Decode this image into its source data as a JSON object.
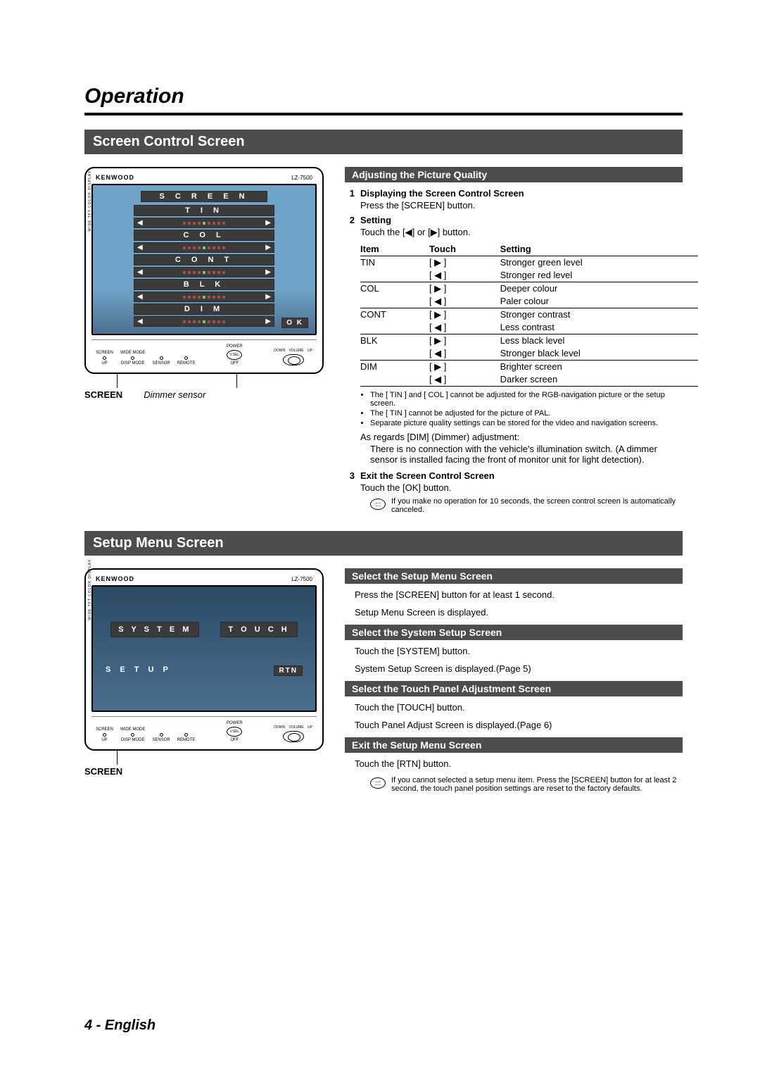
{
  "page_title": "Operation",
  "footer": "4 - English",
  "device": {
    "brand": "KENWOOD",
    "model": "LZ-7500",
    "sidetext": "WIDE TFT COLOR DISPLAY",
    "ok": "O K",
    "hw": {
      "screen": "SCREEN",
      "wide": "WIDE MODE",
      "up": "UP",
      "disp": "DISP MODE",
      "sensor": "SENSOR",
      "remote": "REMOTE",
      "power": "POWER",
      "off": "OFF",
      "vsel": "V.SEL",
      "down": "DOWN",
      "volume": "VOLUME",
      "vol_up": "UP"
    }
  },
  "section1": {
    "title": "Screen Control Screen",
    "menu_title": "S C R E E N",
    "menu_items": [
      "T I N",
      "C O L",
      "C O N T",
      "B L K",
      "D I M"
    ],
    "caption_bold": "SCREEN",
    "caption_italic": "Dimmer sensor",
    "sub_bar": "Adjusting the Picture Quality",
    "steps": {
      "s1_title": "Displaying the Screen Control Screen",
      "s1_body": "Press the [SCREEN] button.",
      "s2_title": "Setting",
      "s2_body": "Touch the [◀] or [▶] button.",
      "s3_title": "Exit the Screen Control Screen",
      "s3_body": "Touch the [OK] button."
    },
    "table": {
      "headers": [
        "Item",
        "Touch",
        "Setting"
      ],
      "rows": [
        {
          "item": "TIN",
          "touch": "[ ▶ ]",
          "setting": "Stronger green level",
          "end": false
        },
        {
          "item": "",
          "touch": "[ ◀ ]",
          "setting": "Stronger red level",
          "end": true
        },
        {
          "item": "COL",
          "touch": "[ ▶ ]",
          "setting": "Deeper colour",
          "end": false
        },
        {
          "item": "",
          "touch": "[ ◀ ]",
          "setting": "Paler colour",
          "end": true
        },
        {
          "item": "CONT",
          "touch": "[ ▶ ]",
          "setting": "Stronger contrast",
          "end": false
        },
        {
          "item": "",
          "touch": "[ ◀ ]",
          "setting": "Less contrast",
          "end": true
        },
        {
          "item": "BLK",
          "touch": "[ ▶ ]",
          "setting": "Less black level",
          "end": false
        },
        {
          "item": "",
          "touch": "[ ◀ ]",
          "setting": "Stronger black level",
          "end": true
        },
        {
          "item": "DIM",
          "touch": "[ ▶ ]",
          "setting": "Brighter screen",
          "end": false
        },
        {
          "item": "",
          "touch": "[ ◀ ]",
          "setting": "Darker screen",
          "end": true
        }
      ]
    },
    "bullet_notes": [
      "The [ TIN ] and [ COL ] cannot be adjusted for the RGB-navigation picture or the setup screen.",
      "The [ TIN ] cannot be adjusted for the picture of PAL.",
      "Separate picture quality settings can be stored for the video and navigation screens."
    ],
    "dim_title": "As regards [DIM] (Dimmer) adjustment:",
    "dim_body": "There is no connection with the vehicle's illumination switch. (A dimmer sensor is installed facing the front of monitor unit for light detection).",
    "info_note": "If you make no operation for 10 seconds, the screen control screen is automatically canceled."
  },
  "section2": {
    "title": "Setup Menu Screen",
    "setup_system": "S Y S T E M",
    "setup_touch": "T O U C H",
    "setup_label": "S E T U P",
    "rtn": "RTN",
    "caption_bold": "SCREEN",
    "blocks": [
      {
        "bar": "Select the Setup Menu Screen",
        "lines": [
          "Press the [SCREEN] button for at least 1 second.",
          "Setup Menu Screen is displayed."
        ]
      },
      {
        "bar": "Select the System Setup Screen",
        "lines": [
          "Touch the [SYSTEM] button.",
          "System Setup Screen is displayed.(Page 5)"
        ]
      },
      {
        "bar": "Select the Touch Panel Adjustment Screen",
        "lines": [
          "Touch the [TOUCH] button.",
          "Touch Panel Adjust Screen is displayed.(Page 6)"
        ]
      },
      {
        "bar": "Exit the Setup Menu Screen",
        "lines": [
          "Touch the [RTN] button."
        ]
      }
    ],
    "info_note": "If you cannot selected a setup menu item. Press the [SCREEN] button for at least 2 second, the touch panel position settings are reset to the factory defaults."
  },
  "colors": {
    "bar_bg": "#4d4d4d",
    "screen_grad_top": "#6fa3c7",
    "screen_grad_bot": "#4a6f8f",
    "menu_bg": "#3b3b3b",
    "dot_off": "#a64b4b",
    "dot_on": "#5fd65f"
  }
}
